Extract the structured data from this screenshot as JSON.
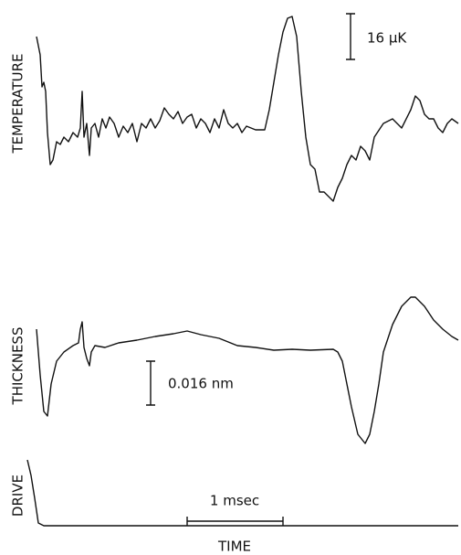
{
  "panels": [
    {
      "label": "TEMPERATURE",
      "scale_bar": "16 μK"
    },
    {
      "label": "THICKNESS",
      "scale_bar": "0.016 nm"
    },
    {
      "label": "DRIVE"
    }
  ],
  "time_scale_bar": "1 msec",
  "x_label": "TIME"
}
